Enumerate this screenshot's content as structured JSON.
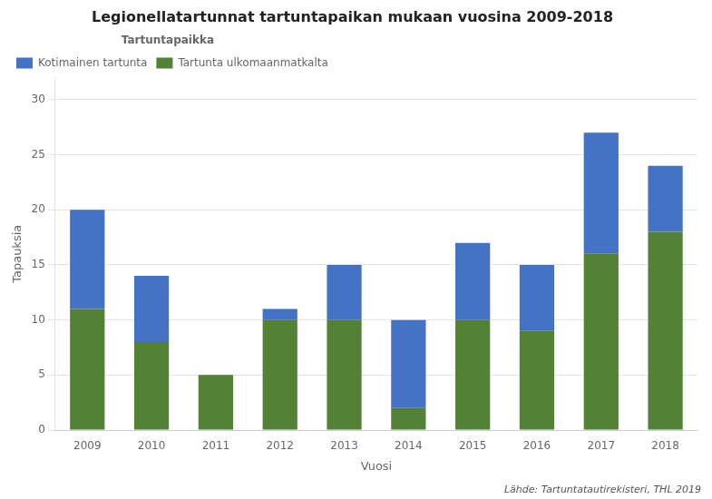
{
  "chart_data": {
    "type": "bar",
    "title": "Legionellatartunnat tartuntapaikan mukaan vuosina 2009-2018",
    "x_label": "Vuosi",
    "y_label": "Tapauksia",
    "legend_title": "Tartuntapaikka",
    "annotation": "Lähde: Tartuntatautirekisteri, THL 2019",
    "categories": [
      "2009",
      "2010",
      "2011",
      "2012",
      "2013",
      "2014",
      "2015",
      "2016",
      "2017",
      "2018"
    ],
    "series": [
      {
        "name": "Tartunta ulkomaanmatkalta",
        "color": "#538135",
        "values": [
          11,
          8,
          5,
          10,
          10,
          2,
          10,
          9,
          16,
          18
        ]
      },
      {
        "name": "Kotimainen tartunta",
        "color": "#4472C4",
        "values": [
          9,
          6,
          0,
          1,
          5,
          8,
          7,
          6,
          11,
          6
        ]
      }
    ],
    "stacked": true,
    "ylim": [
      0,
      32
    ],
    "yticks": [
      0,
      5,
      10,
      15,
      20,
      25,
      30
    ],
    "grid": true,
    "legend": "upper left"
  }
}
